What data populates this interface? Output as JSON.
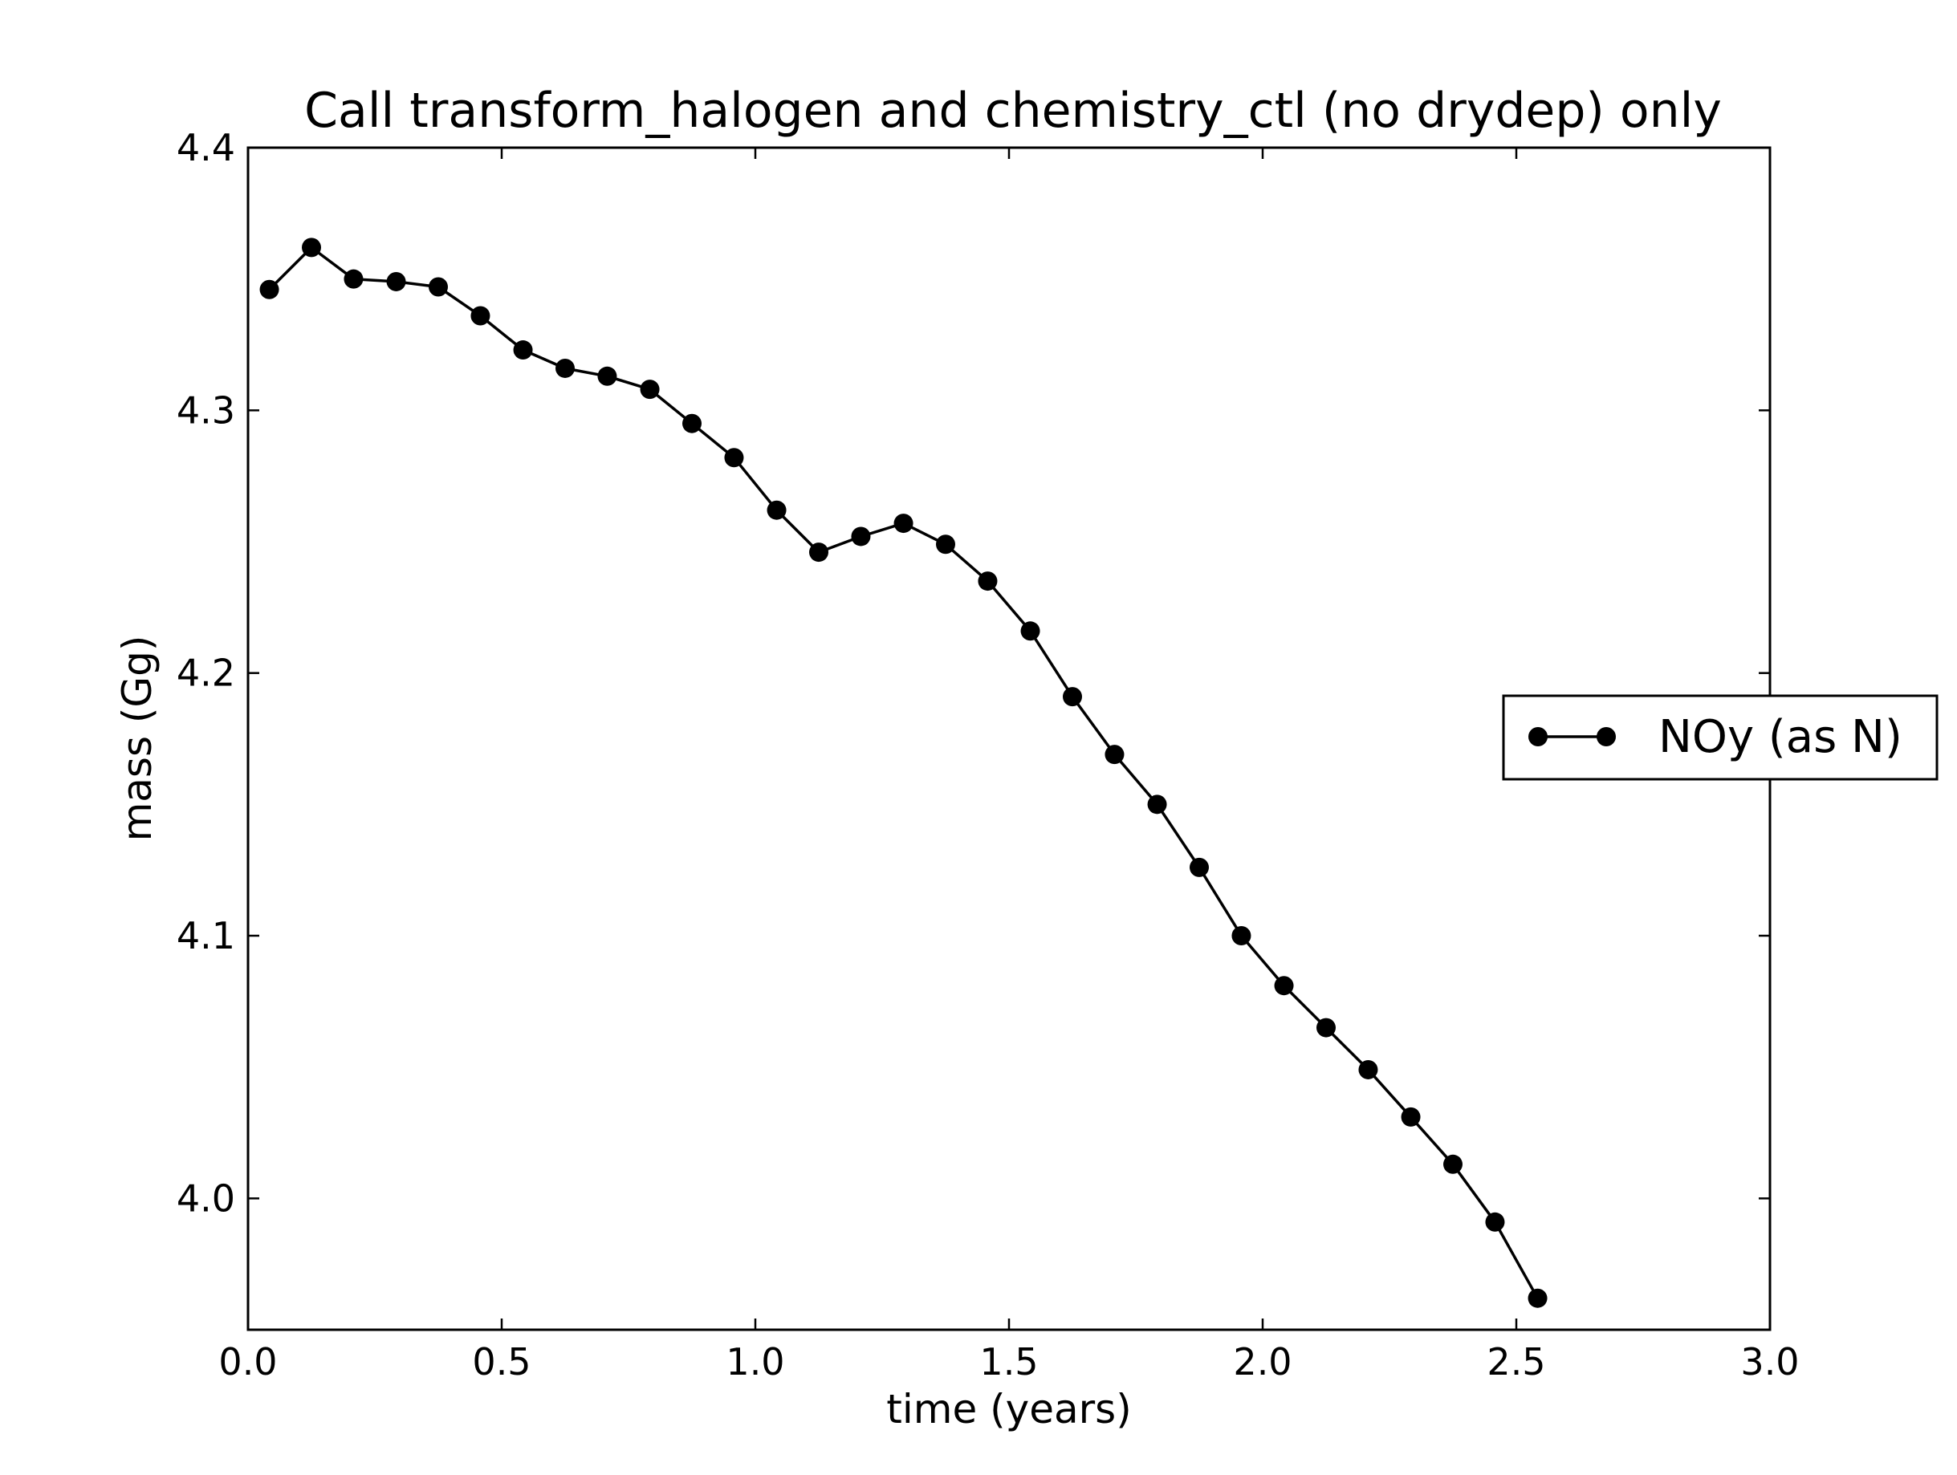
{
  "chart_data": {
    "type": "line",
    "title": "Call transform_halogen and chemistry_ctl (no drydep) only",
    "xlabel": "time (years)",
    "ylabel": "mass (Gg)",
    "xlim": [
      0.0,
      3.0
    ],
    "ylim": [
      3.95,
      4.4
    ],
    "xticks": [
      "0.0",
      "0.5",
      "1.0",
      "1.5",
      "2.0",
      "2.5",
      "3.0"
    ],
    "yticks": [
      "4.0",
      "4.1",
      "4.2",
      "4.3",
      "4.4"
    ],
    "grid": false,
    "legend_position": "center-right",
    "series": [
      {
        "name": "NOy (as N)",
        "color": "#000000",
        "marker": "circle",
        "x": [
          0.042,
          0.125,
          0.208,
          0.292,
          0.375,
          0.458,
          0.542,
          0.625,
          0.708,
          0.792,
          0.875,
          0.958,
          1.042,
          1.125,
          1.208,
          1.292,
          1.375,
          1.458,
          1.542,
          1.625,
          1.708,
          1.792,
          1.875,
          1.958,
          2.042,
          2.125,
          2.208,
          2.292,
          2.375,
          2.458,
          2.542
        ],
        "y": [
          4.346,
          4.362,
          4.35,
          4.349,
          4.347,
          4.336,
          4.323,
          4.316,
          4.313,
          4.308,
          4.295,
          4.282,
          4.262,
          4.246,
          4.252,
          4.257,
          4.249,
          4.235,
          4.216,
          4.191,
          4.169,
          4.15,
          4.126,
          4.1,
          4.081,
          4.065,
          4.049,
          4.031,
          4.013,
          3.991,
          3.962
        ]
      }
    ]
  }
}
